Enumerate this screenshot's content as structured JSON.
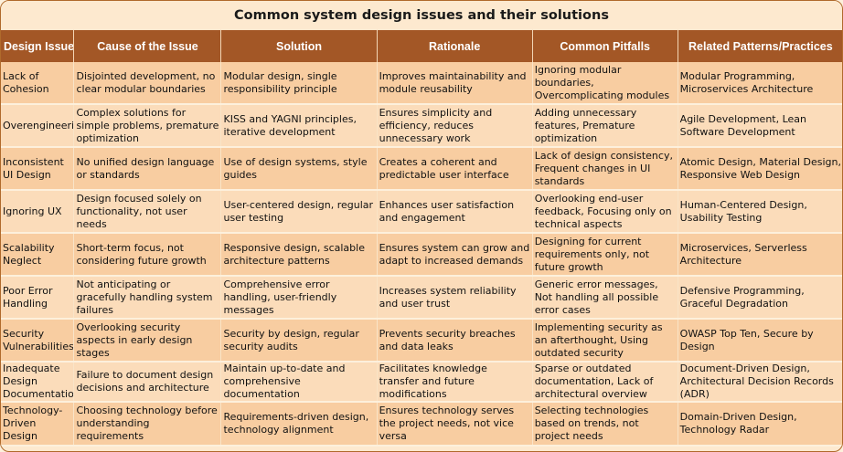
{
  "title": "Common system design issues and their solutions",
  "headers": [
    "Design Issue",
    "Cause of the Issue",
    "Solution",
    "Rationale",
    "Common Pitfalls",
    "Related Patterns/Practices"
  ],
  "rows": [
    [
      "Lack of Cohesion",
      "Disjointed development, no clear modular boundaries",
      "Modular design, single responsibility principle",
      "Improves maintainability and module reusability",
      "Ignoring modular boundaries, Overcomplicating modules",
      "Modular Programming, Microservices Architecture"
    ],
    [
      "Overengineering",
      "Complex solutions for simple problems, premature optimization",
      "KISS and YAGNI principles, iterative development",
      "Ensures simplicity and efficiency, reduces unnecessary work",
      "Adding unnecessary features, Premature optimization",
      "Agile Development, Lean Software Development"
    ],
    [
      "Inconsistent UI Design",
      "No unified design language or standards",
      "Use of design systems, style guides",
      "Creates a coherent and predictable user interface",
      "Lack of design consistency, Frequent changes in UI standards",
      "Atomic Design, Material Design, Responsive Web Design"
    ],
    [
      "Ignoring UX",
      "Design focused solely on functionality, not user needs",
      "User-centered design, regular user testing",
      "Enhances user satisfaction and engagement",
      "Overlooking end-user feedback, Focusing only on technical aspects",
      "Human-Centered Design, Usability Testing"
    ],
    [
      "Scalability Neglect",
      "Short-term focus, not considering future growth",
      "Responsive design, scalable architecture patterns",
      "Ensures system can grow and adapt to increased demands",
      "Designing for current requirements only, not future growth",
      "Microservices, Serverless Architecture"
    ],
    [
      "Poor Error Handling",
      "Not anticipating or gracefully handling system failures",
      "Comprehensive error handling, user-friendly messages",
      "Increases system reliability and user trust",
      "Generic error messages, Not handling all possible error cases",
      "Defensive Programming, Graceful Degradation"
    ],
    [
      "Security Vulnerabilities",
      "Overlooking security aspects in early design stages",
      "Security by design, regular security audits",
      "Prevents security breaches and data leaks",
      "Implementing security as an afterthought, Using outdated security",
      "OWASP Top Ten, Secure by Design"
    ],
    [
      "Inadequate Design Documentation",
      "Failure to document design decisions and architecture",
      "Maintain up-to-date and comprehensive documentation",
      "Facilitates knowledge transfer and future modifications",
      "Sparse or outdated documentation, Lack of architectural overview",
      "Document-Driven Design, Architectural Decision Records (ADR)"
    ],
    [
      "Technology-Driven Design",
      "Choosing technology before understanding requirements",
      "Requirements-driven design, technology alignment",
      "Ensures technology serves the project needs, not vice versa",
      "Selecting technologies based on trends, not project needs",
      "Domain-Driven Design, Technology Radar"
    ]
  ]
}
